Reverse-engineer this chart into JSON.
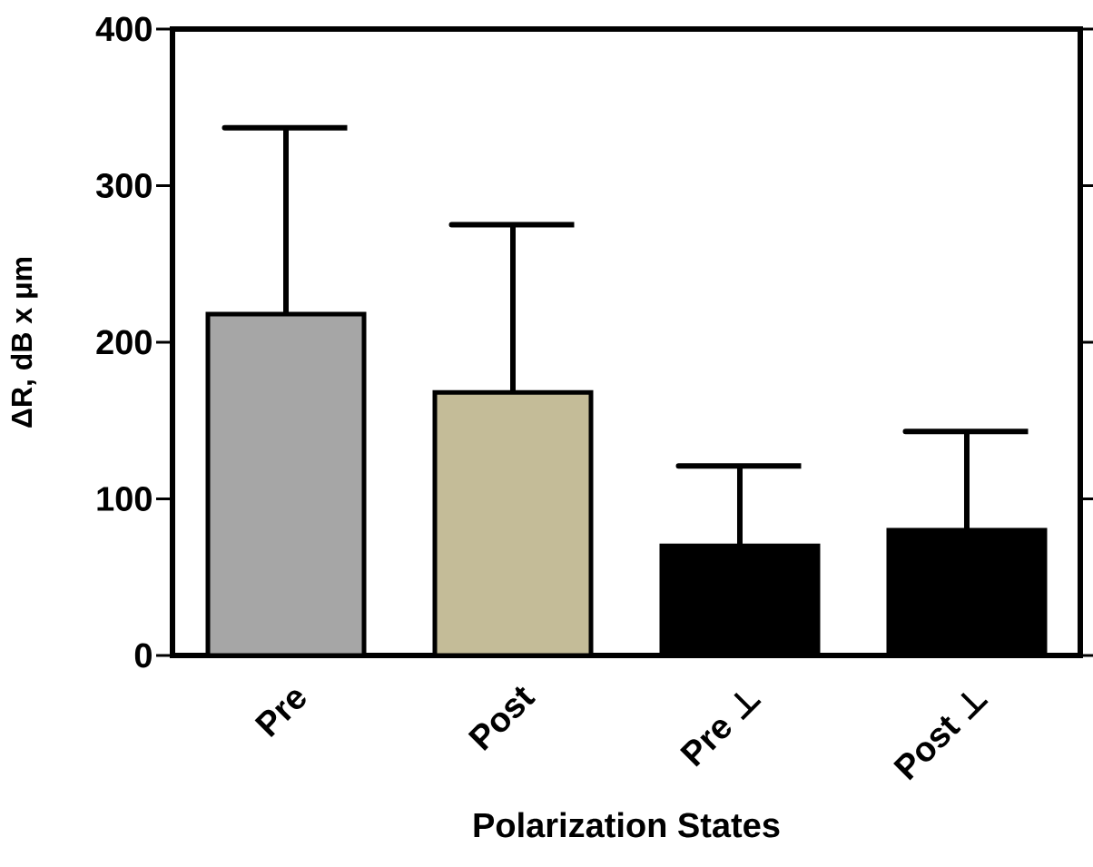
{
  "chart_data": {
    "type": "bar",
    "xlabel": "Polarization States",
    "ylabel": "ΔR, dB x μm",
    "categories": [
      "Pre",
      "Post",
      "Pre ⊥",
      "Post ⊥"
    ],
    "values": [
      218,
      168,
      70,
      80
    ],
    "colors": [
      "#a6a6a6",
      "#c4bc98",
      "#000000",
      "#000000"
    ],
    "errors": [
      [
        218,
        337
      ],
      [
        168,
        275
      ],
      [
        70,
        121
      ],
      [
        80,
        143
      ]
    ],
    "ylim": [
      0,
      400
    ],
    "yticks": [
      0,
      100,
      200,
      300,
      400
    ]
  }
}
